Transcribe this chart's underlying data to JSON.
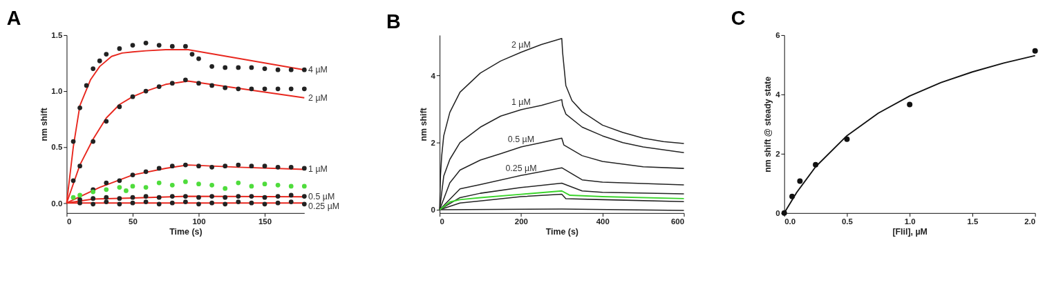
{
  "chart_data": [
    {
      "type": "scatter",
      "title": "A",
      "xlabel": "Time (s)",
      "ylabel": "nm shift",
      "xlim": [
        0,
        180
      ],
      "xticks": [
        0,
        50,
        100,
        150
      ],
      "ylim": [
        -0.09,
        1.5
      ],
      "yticks": [
        {
          "value": 0,
          "label": "0.0"
        },
        0.5,
        {
          "value": 1,
          "label": "1.0"
        },
        1.5
      ],
      "series": [
        {
          "type": "line",
          "name": "4 µM",
          "color": "#e8271e",
          "x": [
            0,
            5,
            10,
            18,
            25,
            34,
            42,
            50,
            60,
            75,
            92,
            180
          ],
          "values": [
            0,
            0.5,
            0.87,
            1.1,
            1.22,
            1.31,
            1.34,
            1.35,
            1.36,
            1.37,
            1.37,
            1.19
          ]
        },
        {
          "type": "line",
          "name": "2 µM",
          "color": "#e8271e",
          "x": [
            0,
            10,
            20,
            30,
            40,
            50,
            60,
            75,
            92,
            180
          ],
          "values": [
            0,
            0.34,
            0.57,
            0.76,
            0.88,
            0.95,
            1.0,
            1.06,
            1.09,
            0.94
          ]
        },
        {
          "type": "line",
          "name": "1 µM",
          "color": "#e8271e",
          "x": [
            0,
            25,
            50,
            75,
            92,
            130,
            180
          ],
          "values": [
            0,
            0.14,
            0.25,
            0.31,
            0.34,
            0.32,
            0.3
          ]
        },
        {
          "type": "line",
          "name": "0.5 µM",
          "color": "#e8271e",
          "x": [
            0,
            20,
            50,
            92,
            180
          ],
          "values": [
            0,
            0.035,
            0.045,
            0.06,
            0.055
          ]
        },
        {
          "type": "line",
          "name": "0.25 µM",
          "color": "#e8271e",
          "x": [
            0,
            180
          ],
          "values": [
            0,
            0
          ]
        },
        {
          "type": "scatter",
          "marker": "circle",
          "color": "#222222",
          "x": [
            5,
            10,
            15,
            20,
            25,
            30,
            40,
            50,
            60,
            70,
            80,
            90,
            95,
            100,
            110,
            120,
            130,
            140,
            150,
            160,
            170,
            180
          ],
          "values": [
            0.55,
            0.85,
            1.05,
            1.2,
            1.27,
            1.33,
            1.38,
            1.41,
            1.43,
            1.41,
            1.4,
            1.4,
            1.33,
            1.29,
            1.22,
            1.21,
            1.21,
            1.21,
            1.2,
            1.19,
            1.19,
            1.19
          ]
        },
        {
          "type": "scatter",
          "marker": "circle",
          "color": "#222222",
          "x": [
            5,
            10,
            20,
            30,
            40,
            50,
            60,
            70,
            80,
            90,
            100,
            110,
            120,
            130,
            140,
            150,
            160,
            170,
            180
          ],
          "values": [
            0.2,
            0.33,
            0.55,
            0.73,
            0.86,
            0.95,
            1.0,
            1.04,
            1.07,
            1.1,
            1.07,
            1.05,
            1.03,
            1.02,
            1.02,
            1.02,
            1.02,
            1.02,
            1.02
          ]
        },
        {
          "type": "scatter",
          "marker": "circle",
          "color": "#222222",
          "x": [
            20,
            30,
            40,
            50,
            60,
            70,
            80,
            90,
            100,
            110,
            120,
            130,
            140,
            150,
            160,
            170,
            180
          ],
          "values": [
            0.12,
            0.18,
            0.2,
            0.25,
            0.28,
            0.31,
            0.33,
            0.34,
            0.33,
            0.32,
            0.33,
            0.34,
            0.33,
            0.33,
            0.32,
            0.32,
            0.31
          ]
        },
        {
          "type": "scatter",
          "marker": "circle",
          "color": "#222222",
          "x": [
            10,
            20,
            30,
            40,
            50,
            60,
            70,
            80,
            90,
            100,
            110,
            120,
            130,
            140,
            150,
            160,
            170,
            180
          ],
          "values": [
            0.03,
            0.04,
            0.05,
            0.04,
            0.05,
            0.06,
            0.05,
            0.06,
            0.06,
            0.05,
            0.06,
            0.05,
            0.06,
            0.06,
            0.05,
            0.06,
            0.07,
            0.06
          ]
        },
        {
          "type": "scatter",
          "marker": "circle",
          "color": "#222222",
          "x": [
            10,
            20,
            30,
            40,
            50,
            60,
            70,
            80,
            90,
            100,
            110,
            120,
            130,
            140,
            150,
            160,
            170,
            180
          ],
          "values": [
            0.0,
            -0.01,
            0.01,
            -0.01,
            0.0,
            0.01,
            -0.01,
            0.0,
            0.01,
            -0.01,
            0.0,
            -0.01,
            0.01,
            0.0,
            -0.01,
            0.0,
            0.01,
            -0.01
          ]
        },
        {
          "type": "scatter",
          "marker": "circle",
          "color": "#4fdc3c",
          "x": [
            5,
            10,
            20,
            30,
            40,
            45,
            50,
            60,
            70,
            80,
            90,
            100,
            110,
            120,
            130,
            140,
            150,
            160,
            170,
            180
          ],
          "values": [
            0.05,
            0.07,
            0.1,
            0.12,
            0.14,
            0.11,
            0.15,
            0.14,
            0.18,
            0.16,
            0.19,
            0.17,
            0.16,
            0.13,
            0.18,
            0.15,
            0.17,
            0.16,
            0.15,
            0.15
          ]
        }
      ]
    },
    {
      "type": "line",
      "title": "B",
      "xlabel": "Time (s)",
      "ylabel": "nm shift",
      "xlim": [
        0,
        600
      ],
      "xticks": [
        0,
        200,
        400,
        600
      ],
      "ylim": [
        -0.1,
        5.2
      ],
      "yticks": [
        0,
        2,
        4
      ],
      "series": [
        {
          "name": "2 µM",
          "color": "#222222",
          "x": [
            0,
            2,
            5,
            10,
            25,
            50,
            100,
            150,
            200,
            250,
            300,
            302,
            310,
            325,
            350,
            400,
            450,
            500,
            550,
            600
          ],
          "values": [
            0,
            1.0,
            1.6,
            2.2,
            2.9,
            3.5,
            4.07,
            4.43,
            4.69,
            4.92,
            5.1,
            4.69,
            3.7,
            3.25,
            2.92,
            2.52,
            2.3,
            2.13,
            2.03,
            1.97
          ]
        },
        {
          "name": "1 µM",
          "color": "#222222",
          "x": [
            0,
            10,
            25,
            50,
            100,
            150,
            200,
            250,
            300,
            302,
            310,
            350,
            400,
            450,
            500,
            600
          ],
          "values": [
            0,
            1.0,
            1.5,
            2.0,
            2.46,
            2.79,
            2.98,
            3.11,
            3.28,
            3.11,
            2.85,
            2.46,
            2.2,
            2.0,
            1.87,
            1.7
          ]
        },
        {
          "name": "0.5 µM",
          "color": "#222222",
          "x": [
            0,
            25,
            50,
            100,
            150,
            200,
            250,
            300,
            305,
            350,
            400,
            500,
            600
          ],
          "values": [
            0,
            0.8,
            1.18,
            1.48,
            1.67,
            1.87,
            2.0,
            2.13,
            1.93,
            1.61,
            1.44,
            1.28,
            1.23
          ]
        },
        {
          "name": "0.25 µM",
          "color": "#222222",
          "x": [
            0,
            50,
            100,
            200,
            300,
            350,
            400,
            600
          ],
          "values": [
            0,
            0.62,
            0.75,
            1.02,
            1.25,
            0.89,
            0.82,
            0.74
          ]
        },
        {
          "color": "#222222",
          "x": [
            0,
            50,
            100,
            200,
            300,
            350,
            400,
            600
          ],
          "values": [
            0,
            0.36,
            0.49,
            0.66,
            0.79,
            0.56,
            0.52,
            0.47
          ]
        },
        {
          "color": "#222222",
          "x": [
            0,
            50,
            100,
            200,
            300,
            310,
            400,
            600
          ],
          "values": [
            0,
            0.2,
            0.26,
            0.39,
            0.46,
            0.33,
            0.3,
            0.24
          ]
        },
        {
          "color": "#222222",
          "x": [
            0,
            300,
            600
          ],
          "values": [
            0,
            0.02,
            -0.02
          ]
        },
        {
          "color": "#39d42a",
          "x": [
            0,
            25,
            50,
            100,
            200,
            300,
            320,
            400,
            600
          ],
          "values": [
            0,
            0.23,
            0.3,
            0.36,
            0.46,
            0.56,
            0.43,
            0.39,
            0.33
          ]
        }
      ]
    },
    {
      "type": "scatter",
      "title": "C",
      "xlabel": "[FliI], µM",
      "ylabel": "nm shift @ steady state",
      "xlim": [
        0,
        2
      ],
      "xticks": [
        {
          "value": 0,
          "label": "0.0"
        },
        0.5,
        {
          "value": 1,
          "label": "1.0"
        },
        1.5,
        {
          "value": 2,
          "label": "2.0"
        }
      ],
      "ylim": [
        0,
        6
      ],
      "yticks": [
        0,
        2,
        4,
        6
      ],
      "series": [
        {
          "type": "line",
          "color": "#111111",
          "x": [
            0,
            0.1,
            0.25,
            0.5,
            0.75,
            1,
            1.25,
            1.5,
            1.75,
            2
          ],
          "values": [
            0,
            0.7,
            1.56,
            2.61,
            3.37,
            3.95,
            4.4,
            4.76,
            5.06,
            5.31
          ]
        },
        {
          "type": "scatter",
          "marker": "circle",
          "color": "#111111",
          "x": [
            0,
            0.0625,
            0.125,
            0.25,
            0.5,
            1,
            2
          ],
          "values": [
            0,
            0.56,
            1.08,
            1.63,
            2.49,
            3.66,
            5.47
          ]
        }
      ]
    }
  ]
}
